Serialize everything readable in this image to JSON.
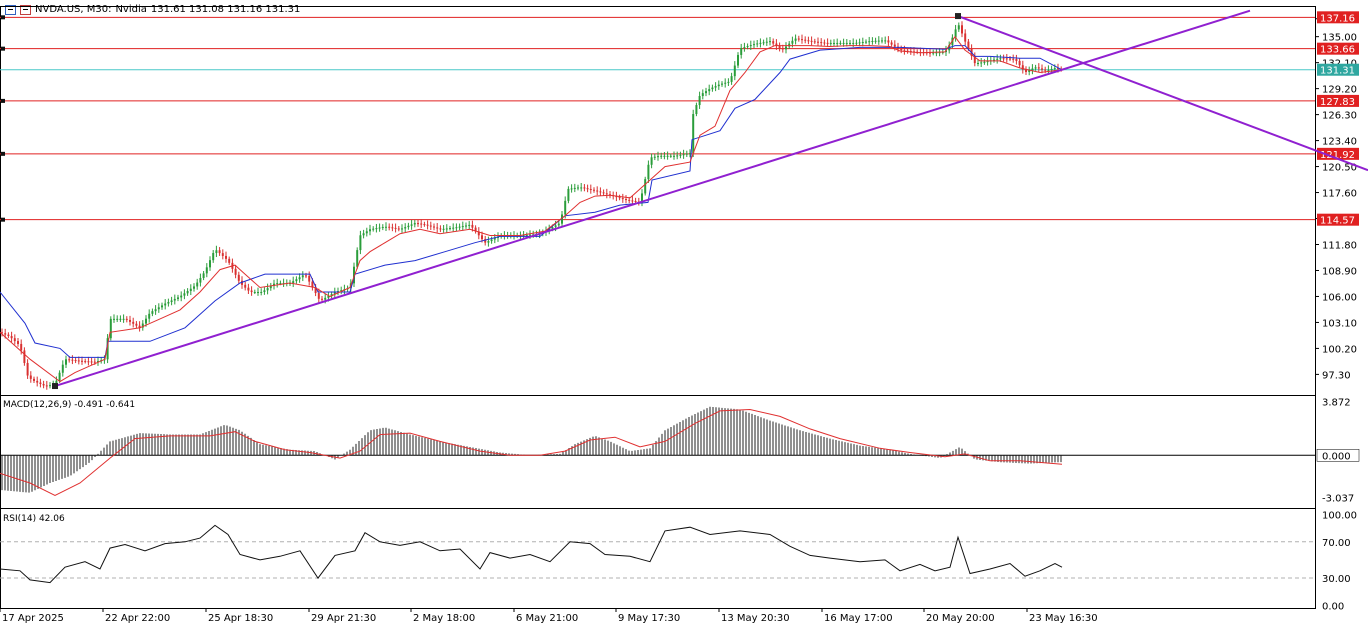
{
  "header": {
    "symbol": "NVDA.US, M30:",
    "name": "Nvidia",
    "ohlc": "131.61 131.08 131.16 131.31",
    "icons": [
      "chart-grid-icon",
      "chart-bars-icon"
    ]
  },
  "colors": {
    "candle_up": "#2a9d3a",
    "candle_down": "#d93030",
    "tenkan": "#e03030",
    "kijun": "#2030d0",
    "trendline": "#9020d0",
    "level_line": "#e02020",
    "price_line": "#48c8c8",
    "macd_signal": "#e03030",
    "axis_text": "#000000"
  },
  "price_axis": {
    "ticks": [
      "137.00",
      "135.00",
      "132.10",
      "129.20",
      "126.30",
      "123.40",
      "120.50",
      "117.60",
      "114.70",
      "111.80",
      "108.90",
      "106.00",
      "103.10",
      "100.20",
      "97.30"
    ]
  },
  "levels": [
    {
      "value": 137.16,
      "label": "137.16"
    },
    {
      "value": 133.66,
      "label": "133.66"
    },
    {
      "value": 127.83,
      "label": "127.83"
    },
    {
      "value": 121.92,
      "label": "121.92"
    },
    {
      "value": 114.57,
      "label": "114.57"
    }
  ],
  "current_price": {
    "value": 131.31,
    "label": "131.31"
  },
  "time_axis": [
    "17 Apr 2025",
    "22 Apr 22:00",
    "25 Apr 18:30",
    "29 Apr 21:30",
    "2 May 18:00",
    "6 May 21:00",
    "9 May 17:30",
    "13 May 20:30",
    "16 May 17:00",
    "20 May 20:00",
    "23 May 16:30"
  ],
  "macd": {
    "label": "MACD(12,26,9) -0.491 -0.641",
    "ticks": [
      "3.872",
      "0.000",
      "-3.037"
    ],
    "current": "0.000"
  },
  "rsi": {
    "label": "RSI(14) 42.06",
    "ticks": [
      "100.00",
      "70.00",
      "30.00",
      "0.00"
    ]
  },
  "chart_data": {
    "type": "candlestick",
    "title": "NVDA.US, M30",
    "ylim": [
      95.0,
      138.2
    ],
    "x": [
      "17 Apr 2025",
      "22 Apr 22:00",
      "25 Apr 18:30",
      "29 Apr 21:30",
      "2 May 18:00",
      "6 May 21:00",
      "9 May 17:30",
      "13 May 20:30",
      "16 May 17:00",
      "20 May 20:00",
      "23 May 16:30"
    ],
    "price_path": [
      [
        0,
        102.0
      ],
      [
        10,
        101.5
      ],
      [
        20,
        100.5
      ],
      [
        28,
        97.0
      ],
      [
        35,
        96.5
      ],
      [
        45,
        96.0
      ],
      [
        55,
        96.2
      ],
      [
        65,
        99.0
      ],
      [
        80,
        98.8
      ],
      [
        95,
        98.7
      ],
      [
        105,
        99.0
      ],
      [
        110,
        103.5
      ],
      [
        125,
        103.5
      ],
      [
        140,
        102.5
      ],
      [
        150,
        104.2
      ],
      [
        165,
        105.2
      ],
      [
        180,
        106.0
      ],
      [
        195,
        107.2
      ],
      [
        205,
        108.8
      ],
      [
        215,
        111.3
      ],
      [
        228,
        110.0
      ],
      [
        240,
        107.5
      ],
      [
        250,
        106.5
      ],
      [
        262,
        106.5
      ],
      [
        275,
        107.5
      ],
      [
        290,
        107.5
      ],
      [
        305,
        108.5
      ],
      [
        320,
        105.5
      ],
      [
        335,
        106.5
      ],
      [
        350,
        107.0
      ],
      [
        360,
        112.8
      ],
      [
        370,
        113.5
      ],
      [
        385,
        113.8
      ],
      [
        400,
        113.5
      ],
      [
        415,
        114.2
      ],
      [
        425,
        114.0
      ],
      [
        440,
        113.5
      ],
      [
        455,
        113.7
      ],
      [
        470,
        114.0
      ],
      [
        485,
        112.0
      ],
      [
        500,
        112.8
      ],
      [
        520,
        112.8
      ],
      [
        540,
        113.0
      ],
      [
        560,
        114.2
      ],
      [
        568,
        118.0
      ],
      [
        580,
        118.2
      ],
      [
        595,
        117.8
      ],
      [
        610,
        117.3
      ],
      [
        625,
        116.8
      ],
      [
        640,
        116.5
      ],
      [
        650,
        121.5
      ],
      [
        660,
        121.7
      ],
      [
        675,
        121.7
      ],
      [
        690,
        122.0
      ],
      [
        693,
        126.3
      ],
      [
        700,
        128.5
      ],
      [
        710,
        129.2
      ],
      [
        720,
        129.7
      ],
      [
        730,
        130.0
      ],
      [
        740,
        133.7
      ],
      [
        755,
        134.2
      ],
      [
        770,
        134.5
      ],
      [
        782,
        133.5
      ],
      [
        795,
        134.8
      ],
      [
        810,
        134.5
      ],
      [
        825,
        134.3
      ],
      [
        840,
        134.3
      ],
      [
        855,
        134.3
      ],
      [
        870,
        134.5
      ],
      [
        885,
        134.6
      ],
      [
        900,
        133.5
      ],
      [
        915,
        133.3
      ],
      [
        930,
        133.2
      ],
      [
        945,
        133.3
      ],
      [
        950,
        134.2
      ],
      [
        958,
        136.5
      ],
      [
        965,
        134.5
      ],
      [
        975,
        132.0
      ],
      [
        985,
        132.2
      ],
      [
        1000,
        132.6
      ],
      [
        1015,
        132.5
      ],
      [
        1025,
        131.0
      ],
      [
        1035,
        131.6
      ],
      [
        1045,
        131.2
      ],
      [
        1055,
        131.5
      ],
      [
        1062,
        131.31
      ]
    ],
    "tenkan_path": [
      [
        0,
        102.0
      ],
      [
        30,
        99.0
      ],
      [
        60,
        96.5
      ],
      [
        75,
        97.5
      ],
      [
        105,
        99.0
      ],
      [
        110,
        102.0
      ],
      [
        140,
        102.5
      ],
      [
        160,
        103.5
      ],
      [
        180,
        104.5
      ],
      [
        200,
        106.5
      ],
      [
        220,
        109.0
      ],
      [
        235,
        109.5
      ],
      [
        245,
        108.5
      ],
      [
        260,
        107.0
      ],
      [
        290,
        107.5
      ],
      [
        315,
        107.0
      ],
      [
        330,
        106.0
      ],
      [
        350,
        107.0
      ],
      [
        360,
        110.0
      ],
      [
        370,
        111.0
      ],
      [
        385,
        112.0
      ],
      [
        400,
        113.0
      ],
      [
        420,
        113.5
      ],
      [
        440,
        113.0
      ],
      [
        470,
        113.5
      ],
      [
        490,
        112.8
      ],
      [
        520,
        112.8
      ],
      [
        545,
        113.3
      ],
      [
        565,
        115.0
      ],
      [
        580,
        116.5
      ],
      [
        595,
        117.2
      ],
      [
        610,
        117.3
      ],
      [
        630,
        117.0
      ],
      [
        650,
        119.0
      ],
      [
        665,
        120.5
      ],
      [
        690,
        121.0
      ],
      [
        700,
        124.0
      ],
      [
        715,
        125.0
      ],
      [
        730,
        129.0
      ],
      [
        745,
        131.0
      ],
      [
        760,
        133.3
      ],
      [
        775,
        134.0
      ],
      [
        790,
        134.0
      ],
      [
        810,
        134.0
      ],
      [
        830,
        133.9
      ],
      [
        850,
        134.0
      ],
      [
        870,
        134.0
      ],
      [
        890,
        133.9
      ],
      [
        900,
        133.4
      ],
      [
        920,
        133.2
      ],
      [
        945,
        133.3
      ],
      [
        955,
        135.0
      ],
      [
        965,
        133.5
      ],
      [
        980,
        132.3
      ],
      [
        1000,
        132.3
      ],
      [
        1020,
        131.5
      ],
      [
        1040,
        131.0
      ],
      [
        1062,
        131.3
      ]
    ],
    "kijun_path": [
      [
        0,
        106.5
      ],
      [
        25,
        103.0
      ],
      [
        35,
        100.8
      ],
      [
        60,
        100.2
      ],
      [
        70,
        99.2
      ],
      [
        105,
        99.2
      ],
      [
        108,
        101.0
      ],
      [
        150,
        101.0
      ],
      [
        185,
        102.5
      ],
      [
        200,
        104.0
      ],
      [
        215,
        105.5
      ],
      [
        240,
        107.5
      ],
      [
        265,
        108.5
      ],
      [
        290,
        108.5
      ],
      [
        310,
        108.5
      ],
      [
        318,
        106.5
      ],
      [
        350,
        106.5
      ],
      [
        355,
        108.5
      ],
      [
        385,
        109.5
      ],
      [
        415,
        110.0
      ],
      [
        445,
        111.0
      ],
      [
        475,
        112.0
      ],
      [
        500,
        112.7
      ],
      [
        540,
        112.7
      ],
      [
        565,
        115.0
      ],
      [
        595,
        115.4
      ],
      [
        620,
        116.2
      ],
      [
        648,
        116.5
      ],
      [
        652,
        119.0
      ],
      [
        690,
        120.0
      ],
      [
        692,
        123.5
      ],
      [
        720,
        124.5
      ],
      [
        735,
        127.0
      ],
      [
        755,
        128.0
      ],
      [
        780,
        131.0
      ],
      [
        790,
        132.5
      ],
      [
        820,
        133.5
      ],
      [
        860,
        133.8
      ],
      [
        900,
        133.8
      ],
      [
        945,
        133.6
      ],
      [
        955,
        134.0
      ],
      [
        965,
        134.0
      ],
      [
        975,
        132.8
      ],
      [
        990,
        132.8
      ],
      [
        1020,
        132.6
      ],
      [
        1040,
        132.6
      ],
      [
        1062,
        131.3
      ]
    ],
    "trendlines": [
      {
        "x": [
          55,
          1250
        ],
        "y": [
          96.0,
          137.9
        ]
      },
      {
        "x": [
          958,
          1368
        ],
        "y": [
          137.3,
          120.1
        ]
      }
    ],
    "macd_hist_path": [
      [
        0,
        -2.5
      ],
      [
        30,
        -2.7
      ],
      [
        50,
        -2.0
      ],
      [
        70,
        -1.5
      ],
      [
        90,
        -0.5
      ],
      [
        110,
        1.0
      ],
      [
        140,
        1.6
      ],
      [
        170,
        1.5
      ],
      [
        200,
        1.5
      ],
      [
        225,
        2.2
      ],
      [
        240,
        1.8
      ],
      [
        260,
        0.8
      ],
      [
        290,
        0.4
      ],
      [
        315,
        0.3
      ],
      [
        335,
        -0.3
      ],
      [
        350,
        0.4
      ],
      [
        370,
        1.8
      ],
      [
        385,
        2.0
      ],
      [
        410,
        1.5
      ],
      [
        440,
        1.0
      ],
      [
        470,
        0.6
      ],
      [
        500,
        0.2
      ],
      [
        530,
        0.0
      ],
      [
        560,
        0.1
      ],
      [
        575,
        0.8
      ],
      [
        595,
        1.4
      ],
      [
        610,
        1.0
      ],
      [
        630,
        0.3
      ],
      [
        650,
        0.5
      ],
      [
        665,
        1.8
      ],
      [
        690,
        2.8
      ],
      [
        710,
        3.5
      ],
      [
        740,
        3.3
      ],
      [
        770,
        2.5
      ],
      [
        800,
        1.8
      ],
      [
        830,
        1.2
      ],
      [
        860,
        0.7
      ],
      [
        890,
        0.4
      ],
      [
        910,
        0.1
      ],
      [
        940,
        -0.2
      ],
      [
        960,
        0.6
      ],
      [
        975,
        -0.3
      ],
      [
        1000,
        -0.5
      ],
      [
        1030,
        -0.6
      ],
      [
        1062,
        -0.49
      ]
    ],
    "macd_signal_path": [
      [
        0,
        -1.3
      ],
      [
        30,
        -2.0
      ],
      [
        55,
        -2.9
      ],
      [
        80,
        -2.0
      ],
      [
        110,
        -0.2
      ],
      [
        135,
        1.2
      ],
      [
        170,
        1.4
      ],
      [
        210,
        1.4
      ],
      [
        235,
        1.7
      ],
      [
        255,
        1.0
      ],
      [
        285,
        0.4
      ],
      [
        310,
        0.2
      ],
      [
        340,
        -0.2
      ],
      [
        360,
        0.3
      ],
      [
        380,
        1.5
      ],
      [
        410,
        1.6
      ],
      [
        440,
        1.0
      ],
      [
        480,
        0.3
      ],
      [
        510,
        0.0
      ],
      [
        540,
        0.0
      ],
      [
        565,
        0.3
      ],
      [
        590,
        1.1
      ],
      [
        615,
        1.3
      ],
      [
        640,
        0.6
      ],
      [
        665,
        1.0
      ],
      [
        695,
        2.3
      ],
      [
        720,
        3.2
      ],
      [
        750,
        3.3
      ],
      [
        780,
        2.8
      ],
      [
        810,
        1.9
      ],
      [
        840,
        1.2
      ],
      [
        880,
        0.5
      ],
      [
        910,
        0.2
      ],
      [
        945,
        -0.1
      ],
      [
        965,
        0.1
      ],
      [
        990,
        -0.4
      ],
      [
        1020,
        -0.4
      ],
      [
        1062,
        -0.64
      ]
    ],
    "rsi_path": [
      [
        0,
        40
      ],
      [
        20,
        38
      ],
      [
        30,
        28
      ],
      [
        50,
        25
      ],
      [
        65,
        42
      ],
      [
        85,
        48
      ],
      [
        100,
        40
      ],
      [
        110,
        63
      ],
      [
        125,
        67
      ],
      [
        145,
        60
      ],
      [
        165,
        68
      ],
      [
        185,
        70
      ],
      [
        200,
        74
      ],
      [
        215,
        88
      ],
      [
        228,
        78
      ],
      [
        240,
        56
      ],
      [
        260,
        50
      ],
      [
        280,
        54
      ],
      [
        300,
        60
      ],
      [
        318,
        30
      ],
      [
        335,
        55
      ],
      [
        355,
        60
      ],
      [
        365,
        80
      ],
      [
        380,
        70
      ],
      [
        400,
        66
      ],
      [
        420,
        70
      ],
      [
        440,
        60
      ],
      [
        460,
        62
      ],
      [
        480,
        40
      ],
      [
        490,
        58
      ],
      [
        510,
        52
      ],
      [
        530,
        56
      ],
      [
        550,
        48
      ],
      [
        570,
        70
      ],
      [
        590,
        68
      ],
      [
        605,
        56
      ],
      [
        630,
        54
      ],
      [
        650,
        48
      ],
      [
        665,
        82
      ],
      [
        690,
        86
      ],
      [
        710,
        78
      ],
      [
        740,
        82
      ],
      [
        770,
        78
      ],
      [
        790,
        65
      ],
      [
        810,
        55
      ],
      [
        830,
        52
      ],
      [
        860,
        48
      ],
      [
        885,
        50
      ],
      [
        900,
        38
      ],
      [
        920,
        45
      ],
      [
        935,
        38
      ],
      [
        950,
        42
      ],
      [
        958,
        75
      ],
      [
        970,
        35
      ],
      [
        990,
        40
      ],
      [
        1010,
        46
      ],
      [
        1025,
        32
      ],
      [
        1040,
        38
      ],
      [
        1055,
        46
      ],
      [
        1062,
        42
      ]
    ]
  }
}
